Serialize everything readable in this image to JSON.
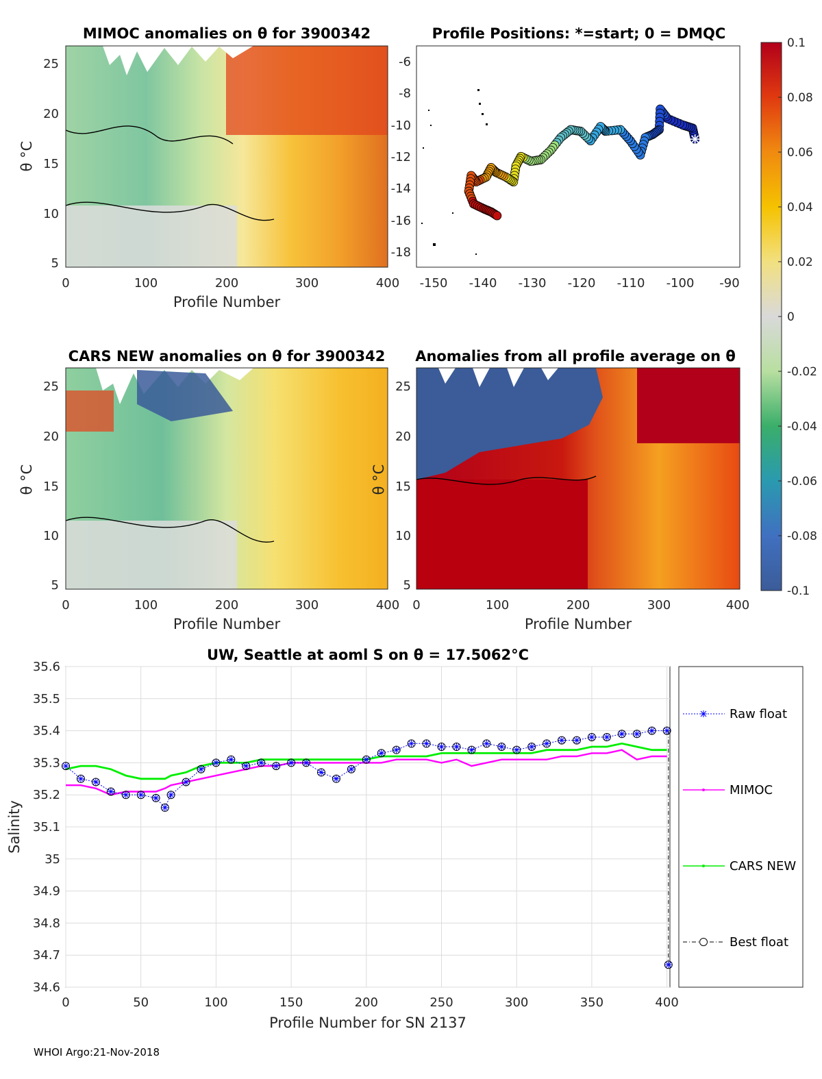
{
  "footer": "WHOI Argo:21-Nov-2018",
  "colors": {
    "raw": "#0000ff",
    "mimoc": "#ff00ff",
    "cars": "#00ee00",
    "best": "#000000",
    "highest": "#b2001a",
    "lowest": "#3b5c99"
  },
  "colorbar": {
    "ticks": [
      {
        "value": 0.1,
        "label": "0.1"
      },
      {
        "value": 0.08,
        "label": "0.08"
      },
      {
        "value": 0.06,
        "label": "0.06"
      },
      {
        "value": 0.04,
        "label": "0.04"
      },
      {
        "value": 0.02,
        "label": "0.02"
      },
      {
        "value": 0,
        "label": "0"
      },
      {
        "value": -0.02,
        "label": "-0.02"
      },
      {
        "value": -0.04,
        "label": "-0.04"
      },
      {
        "value": -0.06,
        "label": "-0.06"
      },
      {
        "value": -0.08,
        "label": "-0.08"
      },
      {
        "value": -0.1,
        "label": "-0.1"
      }
    ],
    "range": [
      -0.1,
      0.1
    ]
  },
  "panels": {
    "mimoc": {
      "title": "MIMOC anomalies on θ  for 3900342",
      "xlabel": "Profile Number",
      "ylabel": "θ °C",
      "xticks": [
        "0",
        "100",
        "200",
        "300",
        "400"
      ],
      "yticks": [
        "5",
        "10",
        "15",
        "20",
        "25"
      ]
    },
    "positions": {
      "title": "Profile Positions: *=start; 0 = DMQC",
      "xticks": [
        "-150",
        "-140",
        "-130",
        "-120",
        "-110",
        "-100",
        "-90"
      ],
      "yticks": [
        "-6",
        "-8",
        "-10",
        "-12",
        "-14",
        "-16",
        "-18"
      ]
    },
    "cars": {
      "title": "CARS NEW anomalies on θ for 3900342",
      "xlabel": "Profile Number",
      "ylabel": "θ °C",
      "xticks": [
        "0",
        "100",
        "200",
        "300",
        "400"
      ],
      "yticks": [
        "5",
        "10",
        "15",
        "20",
        "25"
      ]
    },
    "average": {
      "title": "Anomalies from all profile average on θ",
      "xlabel": "Profile Number",
      "ylabel": "θ °C",
      "xticks": [
        "0",
        "100",
        "200",
        "300",
        "400"
      ],
      "yticks": [
        "5",
        "10",
        "15",
        "20",
        "25"
      ]
    }
  },
  "chart_data": [
    {
      "type": "scatter",
      "title": "Profile Positions: *=start; 0 = DMQC",
      "xlabel": "",
      "ylabel": "",
      "xlim": [
        -152,
        -87
      ],
      "ylim": [
        -19,
        -5
      ],
      "track": [
        {
          "x": -96.0,
          "y": -10.9
        },
        {
          "x": -96.5,
          "y": -10.2
        },
        {
          "x": -98.5,
          "y": -10.0
        },
        {
          "x": -101.5,
          "y": -9.6
        },
        {
          "x": -103.0,
          "y": -9.0
        },
        {
          "x": -103.2,
          "y": -10.3
        },
        {
          "x": -104.5,
          "y": -10.6
        },
        {
          "x": -106.0,
          "y": -10.8
        },
        {
          "x": -107.0,
          "y": -11.9
        },
        {
          "x": -109.0,
          "y": -11.0
        },
        {
          "x": -111.0,
          "y": -10.3
        },
        {
          "x": -114.0,
          "y": -10.4
        },
        {
          "x": -115.0,
          "y": -10.1
        },
        {
          "x": -117.0,
          "y": -11.0
        },
        {
          "x": -119.0,
          "y": -10.4
        },
        {
          "x": -121.0,
          "y": -10.3
        },
        {
          "x": -123.0,
          "y": -10.8
        },
        {
          "x": -125.0,
          "y": -11.6
        },
        {
          "x": -127.0,
          "y": -12.2
        },
        {
          "x": -129.0,
          "y": -12.3
        },
        {
          "x": -131.0,
          "y": -12.0
        },
        {
          "x": -132.0,
          "y": -12.6
        },
        {
          "x": -132.5,
          "y": -13.6
        },
        {
          "x": -134.0,
          "y": -13.3
        },
        {
          "x": -136.0,
          "y": -13.0
        },
        {
          "x": -137.0,
          "y": -12.7
        },
        {
          "x": -138.0,
          "y": -13.3
        },
        {
          "x": -140.0,
          "y": -13.6
        },
        {
          "x": -141.0,
          "y": -13.2
        },
        {
          "x": -141.5,
          "y": -14.2
        },
        {
          "x": -140.5,
          "y": -15.0
        },
        {
          "x": -138.5,
          "y": -15.3
        },
        {
          "x": -137.0,
          "y": -15.5
        },
        {
          "x": -135.5,
          "y": -15.8
        }
      ],
      "start": {
        "x": -96.0,
        "y": -10.9
      }
    },
    {
      "type": "line",
      "title": "UW, Seattle at aoml S on θ = 17.5062°C",
      "xlabel": "Profile Number for SN 2137",
      "ylabel": "Salinity",
      "xlim": [
        0,
        402
      ],
      "ylim": [
        34.6,
        35.6
      ],
      "xticks": [
        "0",
        "50",
        "100",
        "150",
        "200",
        "250",
        "300",
        "350",
        "400"
      ],
      "yticks": [
        "34.6",
        "34.7",
        "34.8",
        "34.9",
        "35",
        "35.1",
        "35.2",
        "35.3",
        "35.4",
        "35.5",
        "35.6"
      ],
      "x": [
        0,
        10,
        20,
        30,
        40,
        50,
        60,
        66,
        70,
        80,
        90,
        100,
        110,
        120,
        130,
        140,
        150,
        160,
        170,
        180,
        190,
        200,
        210,
        220,
        230,
        240,
        250,
        260,
        270,
        280,
        290,
        300,
        310,
        320,
        330,
        340,
        350,
        360,
        370,
        380,
        390,
        400
      ],
      "series": [
        {
          "name": "Raw float",
          "values": [
            35.29,
            35.25,
            35.24,
            35.21,
            35.2,
            35.2,
            35.19,
            35.16,
            35.2,
            35.24,
            35.28,
            35.3,
            35.31,
            35.29,
            35.3,
            35.29,
            35.3,
            35.3,
            35.27,
            35.25,
            35.28,
            35.31,
            35.33,
            35.34,
            35.36,
            35.36,
            35.35,
            35.35,
            35.34,
            35.36,
            35.35,
            35.34,
            35.35,
            35.36,
            35.37,
            35.37,
            35.38,
            35.38,
            35.39,
            35.39,
            35.4,
            35.4
          ]
        },
        {
          "name": "MIMOC",
          "values": [
            35.23,
            35.23,
            35.22,
            35.2,
            35.21,
            35.21,
            35.21,
            35.22,
            35.23,
            35.24,
            35.25,
            35.26,
            35.27,
            35.28,
            35.29,
            35.29,
            35.3,
            35.3,
            35.3,
            35.3,
            35.3,
            35.3,
            35.3,
            35.31,
            35.31,
            35.31,
            35.3,
            35.31,
            35.29,
            35.3,
            35.31,
            35.31,
            35.31,
            35.31,
            35.32,
            35.32,
            35.33,
            35.33,
            35.34,
            35.31,
            35.32,
            35.32
          ]
        },
        {
          "name": "CARS NEW",
          "values": [
            35.28,
            35.29,
            35.29,
            35.28,
            35.26,
            35.25,
            35.25,
            35.25,
            35.26,
            35.27,
            35.29,
            35.3,
            35.3,
            35.3,
            35.31,
            35.31,
            35.31,
            35.31,
            35.31,
            35.31,
            35.31,
            35.31,
            35.32,
            35.32,
            35.32,
            35.32,
            35.33,
            35.33,
            35.33,
            35.33,
            35.33,
            35.33,
            35.33,
            35.34,
            35.34,
            35.34,
            35.35,
            35.35,
            35.36,
            35.35,
            35.34,
            35.34
          ]
        },
        {
          "name": "Best float",
          "values": [
            35.29,
            35.25,
            35.24,
            35.21,
            35.2,
            35.2,
            35.19,
            35.16,
            35.2,
            35.24,
            35.28,
            35.3,
            35.31,
            35.29,
            35.3,
            35.29,
            35.3,
            35.3,
            35.27,
            35.25,
            35.28,
            35.31,
            35.33,
            35.34,
            35.36,
            35.36,
            35.35,
            35.35,
            35.34,
            35.36,
            35.35,
            35.34,
            35.35,
            35.36,
            35.37,
            35.37,
            35.38,
            35.38,
            35.39,
            35.39,
            35.4,
            35.4
          ]
        }
      ],
      "outlier": {
        "x": 401,
        "y": 34.67
      }
    }
  ]
}
